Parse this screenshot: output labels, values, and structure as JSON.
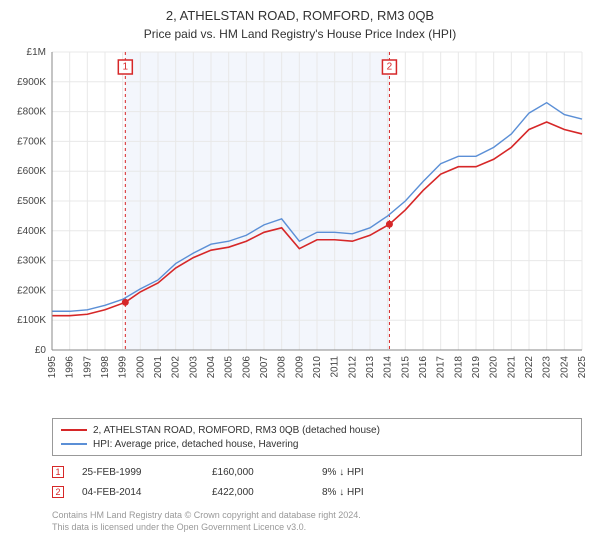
{
  "title": "2, ATHELSTAN ROAD, ROMFORD, RM3 0QB",
  "subtitle": "Price paid vs. HM Land Registry's House Price Index (HPI)",
  "chart": {
    "type": "line",
    "background_color": "#ffffff",
    "shaded_band_color": "#f3f6fc",
    "grid_color": "#e8e8e8",
    "axis_color": "#888888",
    "x_years": [
      1995,
      1996,
      1997,
      1998,
      1999,
      2000,
      2001,
      2002,
      2003,
      2004,
      2005,
      2006,
      2007,
      2008,
      2009,
      2010,
      2011,
      2012,
      2013,
      2014,
      2015,
      2016,
      2017,
      2018,
      2019,
      2020,
      2021,
      2022,
      2023,
      2024,
      2025
    ],
    "ylim": [
      0,
      1000000
    ],
    "ytick_step": 100000,
    "ytick_labels": [
      "£0",
      "£100K",
      "£200K",
      "£300K",
      "£400K",
      "£500K",
      "£600K",
      "£700K",
      "£800K",
      "£900K",
      "£1M"
    ],
    "shaded_band": {
      "start_year": 1999.15,
      "end_year": 2014.1
    },
    "series": [
      {
        "name": "property",
        "label": "2, ATHELSTAN ROAD, ROMFORD, RM3 0QB (detached house)",
        "color": "#d62728",
        "line_width": 1.6,
        "points": [
          [
            1995,
            115000
          ],
          [
            1996,
            115000
          ],
          [
            1997,
            120000
          ],
          [
            1998,
            135000
          ],
          [
            1999.15,
            160000
          ],
          [
            2000,
            195000
          ],
          [
            2001,
            225000
          ],
          [
            2002,
            275000
          ],
          [
            2003,
            310000
          ],
          [
            2004,
            335000
          ],
          [
            2005,
            345000
          ],
          [
            2006,
            365000
          ],
          [
            2007,
            395000
          ],
          [
            2008,
            410000
          ],
          [
            2009,
            340000
          ],
          [
            2010,
            370000
          ],
          [
            2011,
            370000
          ],
          [
            2012,
            365000
          ],
          [
            2013,
            385000
          ],
          [
            2014.1,
            422000
          ],
          [
            2015,
            470000
          ],
          [
            2016,
            535000
          ],
          [
            2017,
            590000
          ],
          [
            2018,
            615000
          ],
          [
            2019,
            615000
          ],
          [
            2020,
            640000
          ],
          [
            2021,
            680000
          ],
          [
            2022,
            740000
          ],
          [
            2023,
            765000
          ],
          [
            2024,
            740000
          ],
          [
            2025,
            725000
          ]
        ]
      },
      {
        "name": "hpi",
        "label": "HPI: Average price, detached house, Havering",
        "color": "#5b8fd6",
        "line_width": 1.4,
        "points": [
          [
            1995,
            130000
          ],
          [
            1996,
            130000
          ],
          [
            1997,
            135000
          ],
          [
            1998,
            150000
          ],
          [
            1999,
            170000
          ],
          [
            2000,
            205000
          ],
          [
            2001,
            235000
          ],
          [
            2002,
            290000
          ],
          [
            2003,
            325000
          ],
          [
            2004,
            355000
          ],
          [
            2005,
            365000
          ],
          [
            2006,
            385000
          ],
          [
            2007,
            420000
          ],
          [
            2008,
            440000
          ],
          [
            2009,
            365000
          ],
          [
            2010,
            395000
          ],
          [
            2011,
            395000
          ],
          [
            2012,
            390000
          ],
          [
            2013,
            410000
          ],
          [
            2014,
            450000
          ],
          [
            2015,
            500000
          ],
          [
            2016,
            565000
          ],
          [
            2017,
            625000
          ],
          [
            2018,
            650000
          ],
          [
            2019,
            650000
          ],
          [
            2020,
            680000
          ],
          [
            2021,
            725000
          ],
          [
            2022,
            795000
          ],
          [
            2023,
            830000
          ],
          [
            2024,
            790000
          ],
          [
            2025,
            775000
          ]
        ]
      }
    ],
    "sale_markers": [
      {
        "num": "1",
        "year": 1999.15,
        "price": 160000,
        "color": "#d62728"
      },
      {
        "num": "2",
        "year": 2014.1,
        "price": 422000,
        "color": "#d62728"
      }
    ],
    "vertical_dashed_color": "#d62728"
  },
  "legend": {
    "items": [
      {
        "color": "#d62728",
        "label": "2, ATHELSTAN ROAD, ROMFORD, RM3 0QB (detached house)"
      },
      {
        "color": "#5b8fd6",
        "label": "HPI: Average price, detached house, Havering"
      }
    ]
  },
  "sales": [
    {
      "num": "1",
      "color": "#d62728",
      "date": "25-FEB-1999",
      "price": "£160,000",
      "diff": "9% ↓ HPI"
    },
    {
      "num": "2",
      "color": "#d62728",
      "date": "04-FEB-2014",
      "price": "£422,000",
      "diff": "8% ↓ HPI"
    }
  ],
  "footer": {
    "line1": "Contains HM Land Registry data © Crown copyright and database right 2024.",
    "line2": "This data is licensed under the Open Government Licence v3.0."
  }
}
